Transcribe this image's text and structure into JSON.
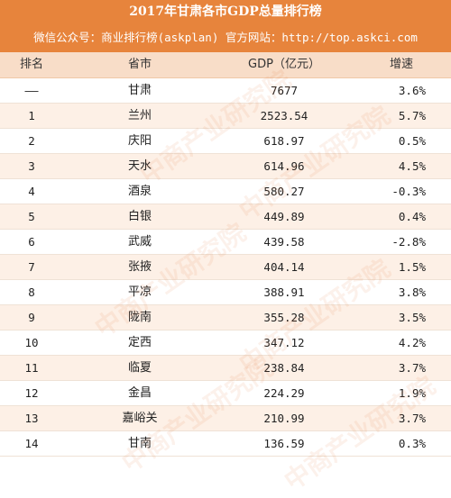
{
  "title": "2017年甘肃各市GDP总量排行榜",
  "subtitle": "微信公众号：商业排行榜(askplan)  官方网站：http://top.askci.com",
  "columns": {
    "rank": "排名",
    "city": "省市",
    "gdp": "GDP（亿元）",
    "growth": "增速"
  },
  "rows": [
    {
      "rank": "——",
      "city": "甘肃",
      "gdp": "7677",
      "growth": "3.6%"
    },
    {
      "rank": "1",
      "city": "兰州",
      "gdp": "2523.54",
      "growth": "5.7%"
    },
    {
      "rank": "2",
      "city": "庆阳",
      "gdp": "618.97",
      "growth": "0.5%"
    },
    {
      "rank": "3",
      "city": "天水",
      "gdp": "614.96",
      "growth": "4.5%"
    },
    {
      "rank": "4",
      "city": "酒泉",
      "gdp": "580.27",
      "growth": "-0.3%"
    },
    {
      "rank": "5",
      "city": "白银",
      "gdp": "449.89",
      "growth": "0.4%"
    },
    {
      "rank": "6",
      "city": "武威",
      "gdp": "439.58",
      "growth": "-2.8%"
    },
    {
      "rank": "7",
      "city": "张掖",
      "gdp": "404.14",
      "growth": "1.5%"
    },
    {
      "rank": "8",
      "city": "平凉",
      "gdp": "388.91",
      "growth": "3.8%"
    },
    {
      "rank": "9",
      "city": "陇南",
      "gdp": "355.28",
      "growth": "3.5%"
    },
    {
      "rank": "10",
      "city": "定西",
      "gdp": "347.12",
      "growth": "4.2%"
    },
    {
      "rank": "11",
      "city": "临夏",
      "gdp": "238.84",
      "growth": "3.7%"
    },
    {
      "rank": "12",
      "city": "金昌",
      "gdp": "224.29",
      "growth": "1.9%"
    },
    {
      "rank": "13",
      "city": "嘉峪关",
      "gdp": "210.99",
      "growth": "3.7%"
    },
    {
      "rank": "14",
      "city": "甘南",
      "gdp": "136.59",
      "growth": "0.3%"
    }
  ],
  "watermark": "中商产业研究院",
  "colors": {
    "header_bg": "#e7843c",
    "column_header_bg": "#f8ddc8",
    "alt_row_bg": "#fdf0e6"
  }
}
